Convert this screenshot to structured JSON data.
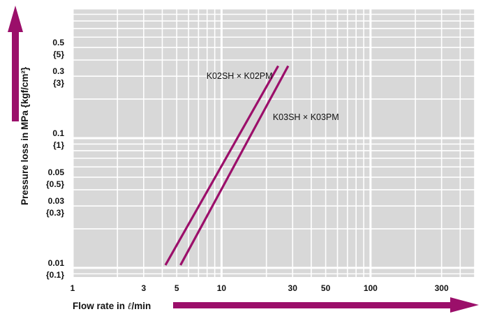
{
  "colors": {
    "plot_background": "#d8d8d8",
    "grid": "#ffffff",
    "series": "#9b0f6a",
    "axis_arrow": "#9b0f6a"
  },
  "chart_data": {
    "type": "line",
    "xlabel_prefix": "Flow rate in ",
    "xlabel_unit_symbol": "ℓ",
    "xlabel_suffix": "/min",
    "ylabel": "Pressure loss in MPa {kgf/cm²}",
    "x_scale": "log",
    "y_scale": "log",
    "xlim": [
      1,
      500
    ],
    "ylim": [
      0.0085,
      1
    ],
    "grid": true,
    "x_ticks": [
      {
        "value": 1,
        "label": "1"
      },
      {
        "value": 3,
        "label": "3"
      },
      {
        "value": 5,
        "label": "5"
      },
      {
        "value": 10,
        "label": "10"
      },
      {
        "value": 30,
        "label": "30"
      },
      {
        "value": 50,
        "label": "50"
      },
      {
        "value": 100,
        "label": "100"
      },
      {
        "value": 300,
        "label": "300"
      }
    ],
    "y_ticks": [
      {
        "value": 0.5,
        "mpa": "0.5",
        "kgf": "{5}"
      },
      {
        "value": 0.3,
        "mpa": "0.3",
        "kgf": "{3}"
      },
      {
        "value": 0.1,
        "mpa": "0.1",
        "kgf": "{1}"
      },
      {
        "value": 0.05,
        "mpa": "0.05",
        "kgf": "{0.5}"
      },
      {
        "value": 0.03,
        "mpa": "0.03",
        "kgf": "{0.3}"
      },
      {
        "value": 0.01,
        "mpa": "0.01",
        "kgf": "{0.1}"
      }
    ],
    "series": [
      {
        "name": "K02SH × K02PM",
        "x": [
          4.2,
          24
        ],
        "y": [
          0.0105,
          0.36
        ],
        "label_at": [
          24,
          0.34
        ],
        "label_side": "left"
      },
      {
        "name": "K03SH × K03PM",
        "x": [
          5.3,
          28
        ],
        "y": [
          0.0105,
          0.36
        ],
        "label_at": [
          28,
          0.16
        ],
        "label_side": "right"
      }
    ]
  }
}
